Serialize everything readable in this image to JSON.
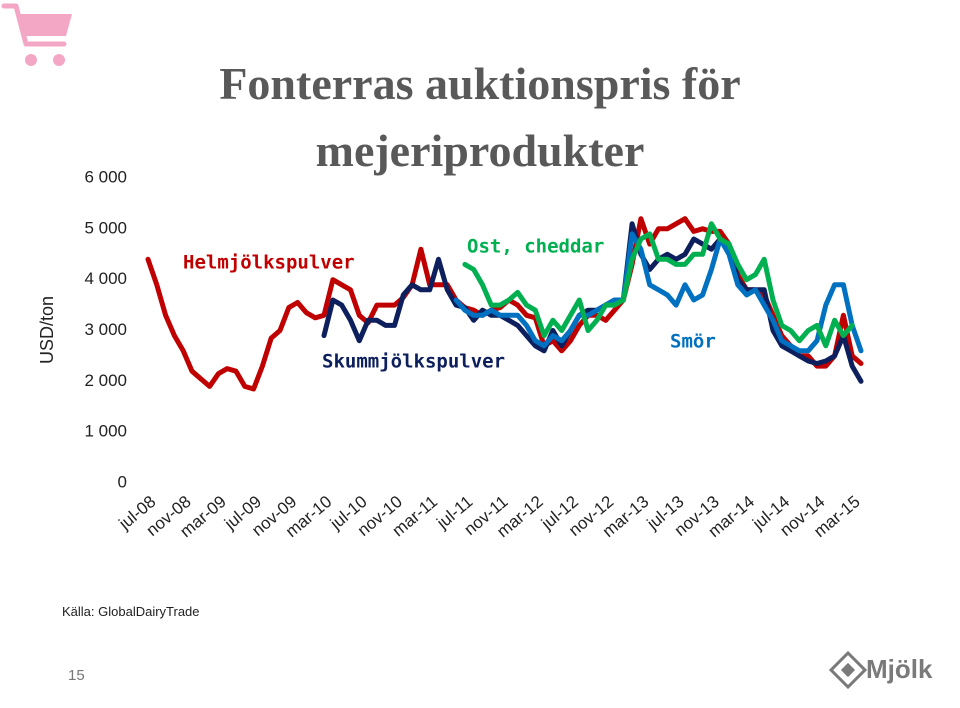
{
  "chart_data": {
    "type": "line",
    "title": "Fonterras auktionspris för mejeriprodukter",
    "y_label": "USD/ton",
    "categories": [
      "jul-08",
      null,
      null,
      null,
      "nov-08",
      null,
      null,
      null,
      "mar-09",
      null,
      null,
      null,
      "jul-09",
      null,
      null,
      null,
      "nov-09",
      null,
      null,
      null,
      "mar-10",
      null,
      null,
      null,
      "jul-10",
      null,
      null,
      null,
      "nov-10",
      null,
      null,
      null,
      "mar-11",
      null,
      null,
      null,
      "jul-11",
      null,
      null,
      null,
      "nov-11",
      null,
      null,
      null,
      "mar-12",
      null,
      null,
      null,
      "jul-12",
      null,
      null,
      null,
      "nov-12",
      null,
      null,
      null,
      "mar-13",
      null,
      null,
      null,
      "jul-13",
      null,
      null,
      null,
      "nov-13",
      null,
      null,
      null,
      "mar-14",
      null,
      null,
      null,
      "jul-14",
      null,
      null,
      null,
      "nov-14",
      null,
      null,
      null,
      "mar-15",
      null
    ],
    "series": [
      {
        "name": "Helmjölkspulver",
        "color": "#c00000",
        "values": [
          4400,
          3900,
          3300,
          2900,
          2600,
          2200,
          2050,
          1900,
          2150,
          2250,
          2200,
          1900,
          1850,
          2300,
          2850,
          3000,
          3450,
          3550,
          3350,
          3250,
          3300,
          4000,
          3900,
          3800,
          3300,
          3150,
          3500,
          3500,
          3500,
          3650,
          3900,
          4600,
          3900,
          3900,
          3900,
          3600,
          3450,
          3400,
          3300,
          3400,
          3450,
          3600,
          3500,
          3300,
          3250,
          2700,
          2800,
          2600,
          2800,
          3100,
          3300,
          3300,
          3200,
          3400,
          3600,
          4300,
          5200,
          4700,
          5000,
          5000,
          5100,
          5200,
          4950,
          5000,
          4950,
          4950,
          4700,
          4100,
          3800,
          3800,
          3700,
          3300,
          2900,
          2700,
          2500,
          2500,
          2300,
          2300,
          2500,
          3300,
          2500,
          2350
        ]
      },
      {
        "name": "Skummjölkspulver",
        "color": "#0d1f5c",
        "values": [
          null,
          null,
          null,
          null,
          null,
          null,
          null,
          null,
          null,
          null,
          null,
          null,
          null,
          null,
          null,
          null,
          null,
          null,
          null,
          null,
          2900,
          3600,
          3500,
          3200,
          2800,
          3200,
          3200,
          3100,
          3100,
          3700,
          3900,
          3800,
          3800,
          4400,
          3800,
          3500,
          3450,
          3200,
          3400,
          3300,
          3300,
          3200,
          3100,
          2900,
          2700,
          2600,
          3000,
          2700,
          3000,
          3300,
          3400,
          3400,
          3500,
          3600,
          3600,
          5100,
          4500,
          4200,
          4400,
          4500,
          4400,
          4500,
          4800,
          4700,
          4600,
          4800,
          4700,
          4000,
          3800,
          3800,
          3800,
          3000,
          2700,
          2600,
          2500,
          2400,
          2350,
          2400,
          2500,
          2900,
          2300,
          2000
        ]
      },
      {
        "name": "Smör",
        "color": "#0070c0",
        "values": [
          null,
          null,
          null,
          null,
          null,
          null,
          null,
          null,
          null,
          null,
          null,
          null,
          null,
          null,
          null,
          null,
          null,
          null,
          null,
          null,
          null,
          null,
          null,
          null,
          null,
          null,
          null,
          null,
          null,
          null,
          null,
          null,
          null,
          null,
          null,
          3600,
          3400,
          3300,
          3300,
          3400,
          3300,
          3300,
          3300,
          3100,
          2800,
          2700,
          2900,
          2800,
          3000,
          3300,
          3300,
          3400,
          3500,
          3600,
          3600,
          4900,
          4600,
          3900,
          3800,
          3700,
          3500,
          3900,
          3600,
          3700,
          4200,
          4800,
          4500,
          3900,
          3700,
          3800,
          3500,
          3200,
          2800,
          2700,
          2600,
          2600,
          2800,
          3500,
          3900,
          3900,
          3100,
          2600
        ]
      },
      {
        "name": "Ost, cheddar",
        "color": "#00b050",
        "values": [
          null,
          null,
          null,
          null,
          null,
          null,
          null,
          null,
          null,
          null,
          null,
          null,
          null,
          null,
          null,
          null,
          null,
          null,
          null,
          null,
          null,
          null,
          null,
          null,
          null,
          null,
          null,
          null,
          null,
          null,
          null,
          null,
          null,
          null,
          null,
          null,
          4300,
          4200,
          3900,
          3500,
          3500,
          3600,
          3750,
          3500,
          3400,
          2900,
          3200,
          3000,
          3300,
          3600,
          3000,
          3200,
          3500,
          3500,
          3600,
          4400,
          4800,
          4900,
          4400,
          4400,
          4300,
          4300,
          4500,
          4500,
          5100,
          4800,
          4700,
          4300,
          4000,
          4100,
          4400,
          3600,
          3100,
          3000,
          2800,
          3000,
          3100,
          2700,
          3200,
          2900,
          3100,
          null
        ]
      }
    ],
    "ylim": [
      0,
      6000
    ],
    "yticks": [
      0,
      {
        "value": 1000,
        "label": "1 000"
      },
      {
        "value": 2000,
        "label": "2 000"
      },
      {
        "value": 3000,
        "label": "3 000"
      },
      {
        "value": 4000,
        "label": "4 000"
      },
      {
        "value": 5000,
        "label": "5 000"
      },
      {
        "value": 6000,
        "label": "6 000"
      }
    ],
    "grid": false
  },
  "source": "Källa: GlobalDairyTrade",
  "page_number": "15",
  "logo_text": "Mjölk"
}
